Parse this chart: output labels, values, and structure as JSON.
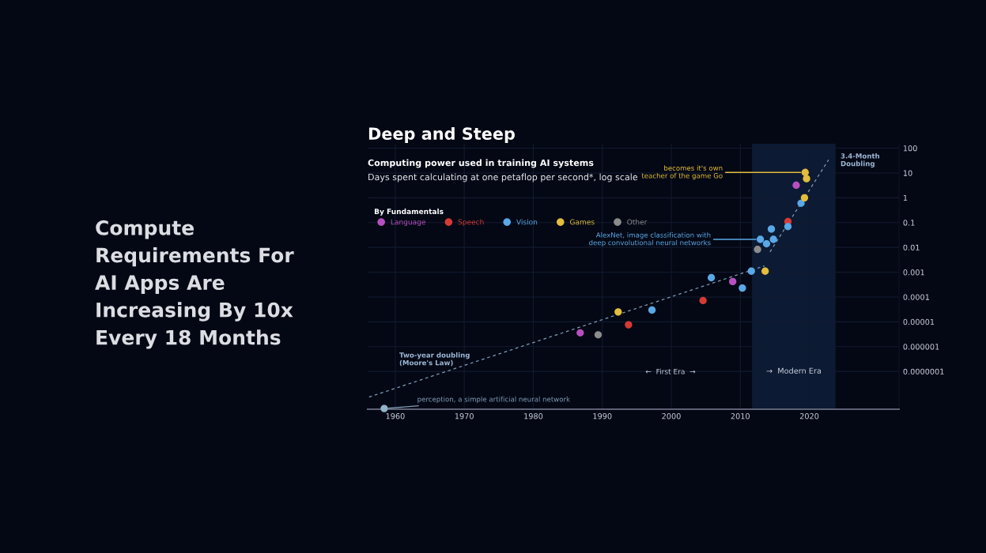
{
  "chart_data": {
    "type": "scatter",
    "title": "Deep and Steep",
    "subtitle": "Computing power used in training AI systems",
    "ylabel": "Days spent calculating at one petaflop per second*, log scale",
    "legend_title": "By Fundamentals",
    "log": "y",
    "grid": true,
    "legend": "top left",
    "marker": "circle",
    "xlim": [
      1956,
      2033
    ],
    "xticks": [
      1960,
      1970,
      1980,
      1990,
      2000,
      2010,
      2020
    ],
    "ylim": [
      3e-09,
      150
    ],
    "yticks": [
      {
        "value": 1e-07,
        "label": "0.0000001"
      },
      {
        "value": 1e-06,
        "label": "0.000001"
      },
      {
        "value": 1e-05,
        "label": "0.00001"
      },
      0.0001,
      0.001,
      0.01,
      0.1,
      1,
      10,
      100
    ],
    "series": [
      {
        "name": "Language",
        "color": "#b84fc0",
        "x": [
          1986.8,
          2008.9,
          2018.1
        ],
        "values": [
          3.6e-06,
          0.00042,
          3.2
        ]
      },
      {
        "name": "Speech",
        "color": "#d63a35",
        "x": [
          1993.8,
          2004.6,
          2016.9
        ],
        "values": [
          7.6e-06,
          7.2e-05,
          0.11
        ]
      },
      {
        "name": "Vision",
        "color": "#5aa8e6",
        "x": [
          1997.2,
          2005.8,
          2010.3,
          2011.6,
          2012.9,
          2013.8,
          2014.5,
          2014.8,
          2016.9,
          2018.8
        ],
        "values": [
          3e-05,
          0.0006,
          0.00023,
          0.0011,
          0.021,
          0.014,
          0.055,
          0.021,
          0.069,
          0.6
        ]
      },
      {
        "name": "Games",
        "color": "#e3bd3c",
        "x": [
          1992.3,
          2013.6,
          2019.3,
          2019.4,
          2019.6
        ],
        "values": [
          2.5e-05,
          0.0011,
          1.0,
          10.5,
          5.9
        ]
      },
      {
        "name": "Other",
        "color": "#8c8c8c",
        "x": [
          1989.4,
          2012.5
        ],
        "values": [
          3e-06,
          0.0083
        ]
      },
      {
        "color": "#8fb4c8",
        "x": [
          1958.4
        ],
        "values": [
          3.2e-09
        ]
      },
      {
        "type": "line",
        "color": "#7f9bb5",
        "line_style": "dashed",
        "marker": "none",
        "x": [
          1956.2,
          2013.5
        ],
        "values": [
          9.3e-09,
          0.0018
        ]
      },
      {
        "type": "line",
        "color": "#7f9bb5",
        "line_style": "dashed",
        "marker": "none",
        "x": [
          2014.3,
          2022.8
        ],
        "values": [
          0.0066,
          34
        ]
      }
    ],
    "bands": [
      {
        "axis": "x",
        "from": 2011.7,
        "to": 2023.8,
        "label": "→  Modern Era",
        "color": "#0c1a33"
      }
    ],
    "annotations": [
      {
        "text": "perception, a simple artificial neural network",
        "x": 1958.4,
        "y": 3.2e-09
      },
      {
        "text": "AlexNet, image classification with\ndeep convolutional neural networks",
        "x": 2012.9,
        "y": 0.021
      },
      {
        "text": "becomes it's own\nteacher of the game Go",
        "x": 2019.4,
        "y": 10.5
      },
      "Two-year doubling\n(Moore's Law)",
      "3.4-Month\nDoubling",
      "←  First Era  →",
      "Compute\nRequirements For\nAI Apps Are\nIncreasing By 10x\nEvery 18 Months"
    ]
  }
}
